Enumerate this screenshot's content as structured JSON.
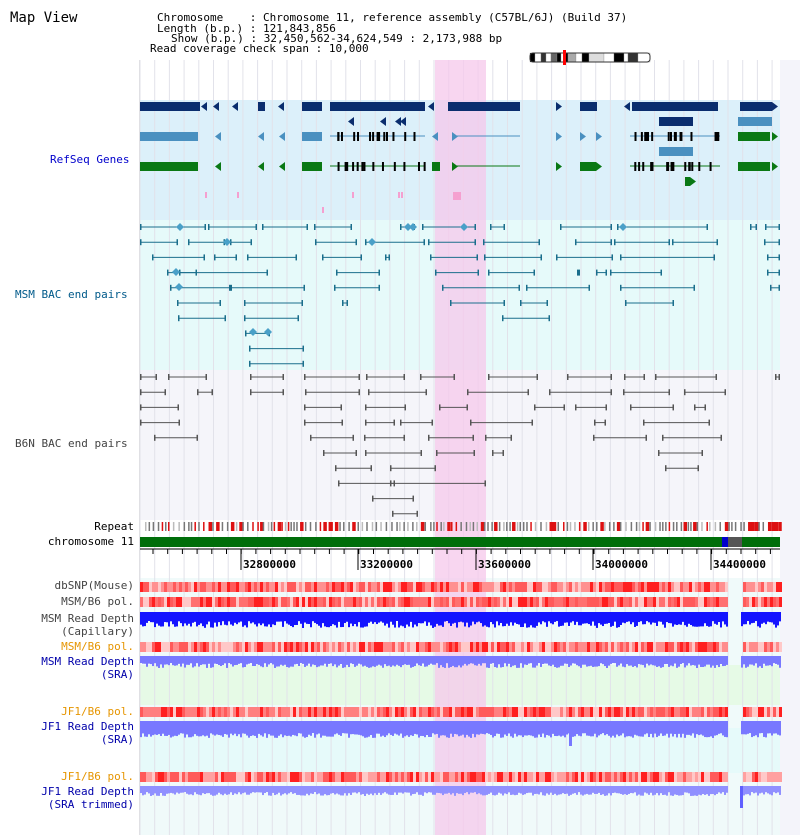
{
  "header": {
    "title": "Map View",
    "chromosome_key": "Chromosome",
    "chromosome_value": "Chromosome 11, reference assembly (C57BL/6J) (Build 37)",
    "length_key": "Length (b.p.)",
    "length_value": "121,843,856",
    "show_key": "Show (b.p.)",
    "show_value": "32,450,562-34,624,549 : 2,173,988 bp",
    "span_key": "Read coverage check span",
    "span_value": "10,000"
  },
  "tracks": {
    "refseq": "RefSeq Genes",
    "msm_bac": "MSM BAC end pairs",
    "b6n_bac": "B6N BAC end pairs",
    "repeat": "Repeat",
    "chromosome": "chromosome 11",
    "dbsnp": "dbSNP(Mouse)",
    "msm_b6_pol_1": "MSM/B6 pol.",
    "msm_read_depth_cap_1": "MSM Read Depth",
    "msm_read_depth_cap_2": "(Capillary)",
    "msm_b6_pol_2": "MSM/B6 pol.",
    "msm_read_depth_sra_1": "MSM Read Depth",
    "msm_read_depth_sra_2": "(SRA)",
    "jf1_b6_pol_1": "JF1/B6 pol.",
    "jf1_read_depth_sra_1": "JF1 Read Depth",
    "jf1_read_depth_sra_2": "(SRA)",
    "jf1_b6_pol_2": "JF1/B6 pol.",
    "jf1_read_depth_trim_1": "JF1 Read Depth",
    "jf1_read_depth_trim_2": "(SRA trimmed)"
  },
  "axis": {
    "ticks": [
      "32800000",
      "33200000",
      "33600000",
      "34000000",
      "34400000"
    ]
  },
  "colors": {
    "refseq_bg": "#dcf0fa",
    "msm_bac_bg": "#e6fafa",
    "b6n_bg": "#f5f5fa",
    "highlight": "#f5c8eb",
    "gene_dark": "#0a2d6e",
    "gene_mid": "#4a90c0",
    "gene_green": "#0a7814",
    "bac_line": "#1a6e8c",
    "b6n_line": "#555555",
    "depth_blue": "#1414ff",
    "depth_light": "#7878ff"
  }
}
